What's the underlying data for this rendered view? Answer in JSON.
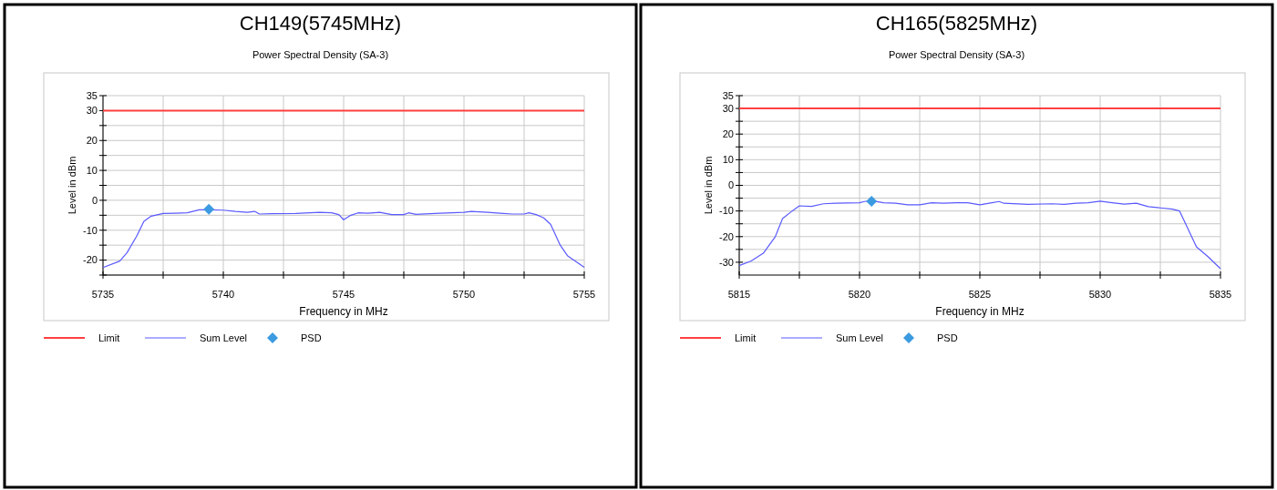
{
  "chart_data": [
    {
      "type": "line",
      "title": "CH149(5745MHz)",
      "subtitle": "Power Spectral Density (SA-3)",
      "xlabel": "Frequency in MHz",
      "ylabel": "Level in dBm",
      "xlim": [
        5735,
        5755
      ],
      "ylim": [
        -25,
        35
      ],
      "xticks": [
        5735,
        {
          "value": 5737.5,
          "label": null
        },
        5740,
        {
          "value": 5742.5,
          "label": null
        },
        5745,
        {
          "value": 5747.5,
          "label": null
        },
        5750,
        {
          "value": 5752.5,
          "label": null
        },
        5755
      ],
      "yticks": [
        {
          "value": -25,
          "label": null
        },
        -20,
        {
          "value": -15,
          "label": null
        },
        -10,
        {
          "value": -5,
          "label": null
        },
        0,
        {
          "value": 5,
          "label": null
        },
        10,
        {
          "value": 15,
          "label": null
        },
        20,
        {
          "value": 25,
          "label": null
        },
        30,
        35
      ],
      "grid": true,
      "legend": "bottom left",
      "series": [
        {
          "name": "Limit",
          "color": "#ff4040",
          "x": [
            5735,
            5755
          ],
          "values": [
            30,
            30
          ]
        },
        {
          "name": "Sum Level",
          "color": "#5a5aff",
          "x": [
            5735,
            5735.7,
            5736,
            5736.4,
            5736.7,
            5737,
            5737.5,
            5738,
            5738.5,
            5739,
            5739.4,
            5740,
            5740.5,
            5741,
            5741.3,
            5741.5,
            5742,
            5743,
            5744,
            5744.5,
            5744.8,
            5745,
            5745.3,
            5745.6,
            5746,
            5746.5,
            5747,
            5747.5,
            5747.7,
            5748,
            5749,
            5750,
            5750.3,
            5751,
            5751.5,
            5752,
            5752.5,
            5752.7,
            5753,
            5753.3,
            5753.6,
            5754,
            5754.3,
            5755
          ],
          "values": [
            -22.5,
            -20.3,
            -17.5,
            -12,
            -7,
            -5.3,
            -4.4,
            -4.3,
            -4.2,
            -3.2,
            -3.2,
            -3.3,
            -3.7,
            -4,
            -3.7,
            -4.6,
            -4.5,
            -4.4,
            -4,
            -4.2,
            -4.8,
            -6.5,
            -5,
            -4.2,
            -4.3,
            -4,
            -4.8,
            -4.8,
            -4.2,
            -4.7,
            -4.3,
            -4,
            -3.7,
            -4,
            -4.3,
            -4.6,
            -4.6,
            -4.2,
            -4.8,
            -5.8,
            -8,
            -15,
            -18.5,
            -22.4
          ]
        },
        {
          "name": "PSD",
          "type": "scatter",
          "marker": "diamond",
          "color": "#3c9be0",
          "x": [
            5739.4
          ],
          "values": [
            -3
          ]
        }
      ]
    },
    {
      "type": "line",
      "title": "CH165(5825MHz)",
      "subtitle": "Power Spectral Density (SA-3)",
      "xlabel": "Frequency in MHz",
      "ylabel": "Level in dBm",
      "xlim": [
        5815,
        5835
      ],
      "ylim": [
        -35,
        35
      ],
      "xticks": [
        5815,
        {
          "value": 5817.5,
          "label": null
        },
        5820,
        {
          "value": 5822.5,
          "label": null
        },
        5825,
        {
          "value": 5827.5,
          "label": null
        },
        5830,
        {
          "value": 5832.5,
          "label": null
        },
        5835
      ],
      "yticks": [
        -30,
        {
          "value": -25,
          "label": null
        },
        -20,
        {
          "value": -15,
          "label": null
        },
        -10,
        {
          "value": -5,
          "label": null
        },
        0,
        {
          "value": 5,
          "label": null
        },
        10,
        {
          "value": 15,
          "label": null
        },
        20,
        {
          "value": 25,
          "label": null
        },
        30,
        35
      ],
      "grid": true,
      "legend": "bottom left",
      "series": [
        {
          "name": "Limit",
          "color": "#ff4040",
          "x": [
            5815,
            5835
          ],
          "values": [
            30,
            30
          ]
        },
        {
          "name": "Sum Level",
          "color": "#5a5aff",
          "x": [
            5815,
            5815.5,
            5816,
            5816.5,
            5816.8,
            5817.2,
            5817.5,
            5818,
            5818.5,
            5819,
            5820,
            5820.2,
            5820.5,
            5821,
            5821.5,
            5822,
            5822.5,
            5823,
            5823.5,
            5824,
            5824.5,
            5825,
            5825.5,
            5825.8,
            5826,
            5827,
            5828,
            5828.5,
            5829,
            5829.5,
            5830,
            5830.5,
            5831,
            5831.5,
            5832,
            5832.5,
            5833,
            5833.3,
            5833.6,
            5834,
            5834.5,
            5835
          ],
          "values": [
            -31.3,
            -29.5,
            -26.5,
            -20,
            -13,
            -10,
            -8,
            -8.2,
            -7.2,
            -7,
            -6.8,
            -6.3,
            -6,
            -6.8,
            -7,
            -7.6,
            -7.6,
            -6.8,
            -7,
            -6.8,
            -6.8,
            -7.6,
            -6.8,
            -6.3,
            -7,
            -7.4,
            -7.2,
            -7.4,
            -7,
            -6.8,
            -6.2,
            -6.8,
            -7.3,
            -7,
            -8.3,
            -8.8,
            -9.3,
            -10,
            -16,
            -24,
            -28,
            -32.5
          ]
        },
        {
          "name": "PSD",
          "type": "scatter",
          "marker": "diamond",
          "color": "#3c9be0",
          "x": [
            5820.5
          ],
          "values": [
            -6.2
          ]
        }
      ]
    }
  ]
}
